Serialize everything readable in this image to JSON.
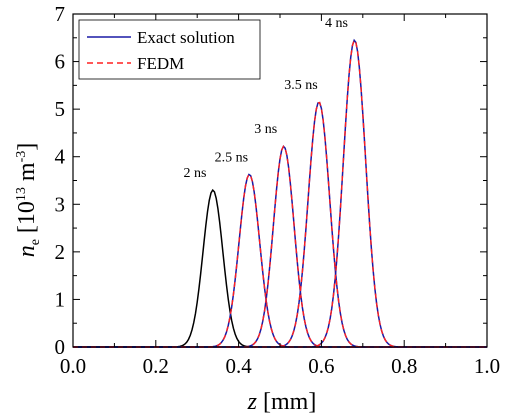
{
  "chart_data": {
    "type": "line",
    "xlabel_italic": "z",
    "xlabel_unit": " [mm]",
    "ylabel_italic": "n",
    "ylabel_sub": "e",
    "ylabel_bracket_open": " [10",
    "ylabel_exp": "13",
    "ylabel_unit": " m",
    "ylabel_unit_exp": "-3",
    "ylabel_bracket_close": "]",
    "xlim": [
      0.0,
      1.0
    ],
    "ylim": [
      0,
      7
    ],
    "xticks": [
      "0.0",
      "0.2",
      "0.4",
      "0.6",
      "0.8",
      "1.0"
    ],
    "yticks": [
      "0",
      "1",
      "2",
      "3",
      "4",
      "5",
      "6",
      "7"
    ],
    "legend": {
      "placement": "top-left",
      "entries": [
        {
          "label": "Exact solution",
          "color": "#1a1aa6",
          "style": "solid"
        },
        {
          "label": "FEDM",
          "color": "#ff2020",
          "style": "dashed"
        }
      ]
    },
    "pulses": [
      {
        "label": "2 ns",
        "center": 0.338,
        "peak": 3.3,
        "sigma": 0.024,
        "color": "#000000",
        "fedm": false
      },
      {
        "label": "2.5 ns",
        "center": 0.426,
        "peak": 3.63,
        "sigma": 0.025,
        "color": "#1a1aa6",
        "fedm": true
      },
      {
        "label": "3 ns",
        "center": 0.509,
        "peak": 4.22,
        "sigma": 0.025,
        "color": "#1a1aa6",
        "fedm": true
      },
      {
        "label": "3.5 ns",
        "center": 0.594,
        "peak": 5.15,
        "sigma": 0.026,
        "color": "#1a1aa6",
        "fedm": true
      },
      {
        "label": "4 ns",
        "center": 0.68,
        "peak": 6.45,
        "sigma": 0.027,
        "color": "#1a1aa6",
        "fedm": true
      }
    ]
  }
}
